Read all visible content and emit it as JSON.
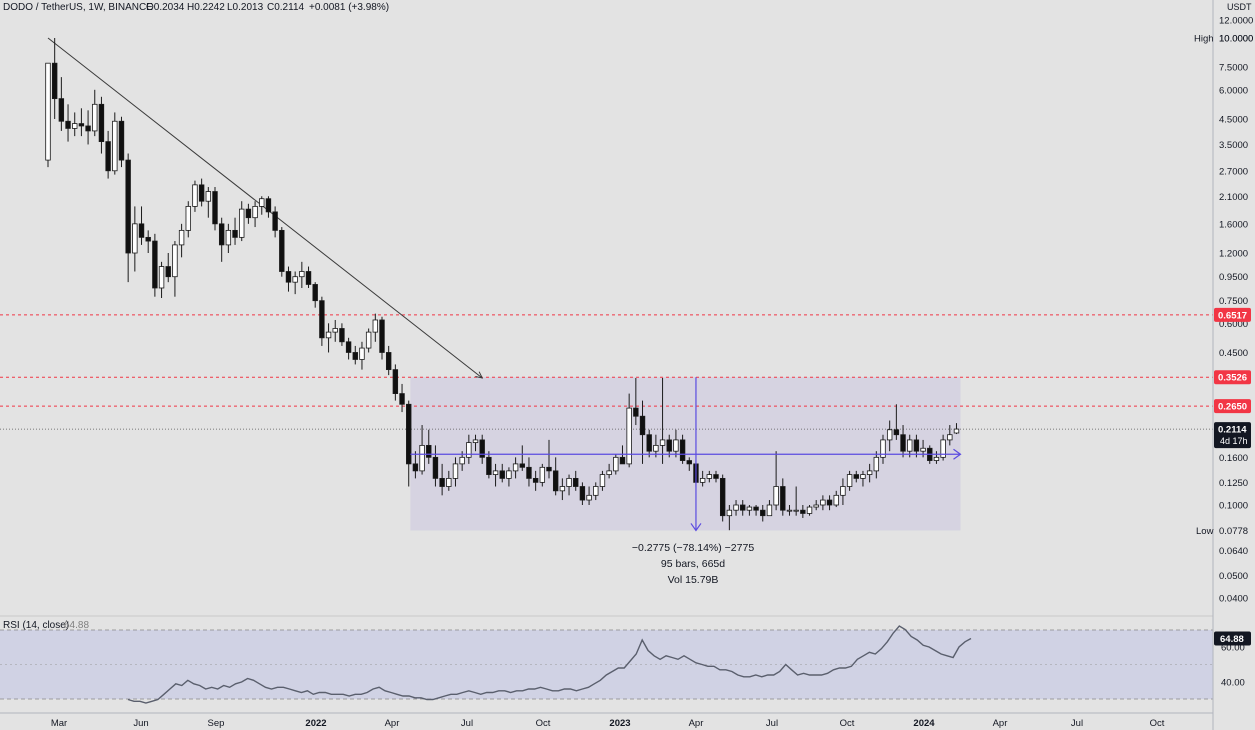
{
  "header": {
    "symbol": "DODO / TetherUS, 1W, BINANCE",
    "open": "O0.2034",
    "high": "H0.2242",
    "low": "L0.2013",
    "close": "C0.2114",
    "change": "+0.0081 (+3.98%)"
  },
  "price_axis": {
    "currency": "USDT",
    "ticks": [
      "12.0000",
      "10.0000",
      "7.5000",
      "6.0000",
      "4.5000",
      "3.5000",
      "2.7000",
      "2.1000",
      "1.6000",
      "1.2000",
      "0.9500",
      "0.7500",
      "0.6000",
      "0.4500",
      "0.1600",
      "0.1250",
      "0.1000",
      "0.0640",
      "0.0500",
      "0.0400"
    ],
    "high_label": "High",
    "high_value": "10.0000",
    "low_label": "Low",
    "low_value": "0.0778",
    "red_levels": [
      "0.6517",
      "0.3526",
      "0.2650"
    ],
    "last_price": "0.2114",
    "countdown": "4d 17h"
  },
  "time_axis": {
    "labels": [
      "Mar",
      "Jun",
      "Sep",
      "2022",
      "Apr",
      "Jul",
      "Oct",
      "2023",
      "Apr",
      "Jul",
      "Oct",
      "2024",
      "Apr",
      "Jul",
      "Oct"
    ]
  },
  "measure": {
    "line1": "−0.2775 (−78.14%) −2775",
    "line2": "95 bars, 665d",
    "line3": "Vol 15.79B"
  },
  "rsi": {
    "label": "RSI (14, close)",
    "value": "64.88",
    "ticks": [
      "60.00",
      "40.00"
    ],
    "last_value": "64.88"
  },
  "colors": {
    "background": "#e3e3e3",
    "red_level": "#f23645",
    "measure_blue": "#5b4be0",
    "range_box": "rgba(180,170,220,0.28)",
    "rsi_band": "rgba(140,150,230,0.22)"
  },
  "chart_data": {
    "type": "candlestick",
    "series_step": "1W",
    "price_scale": "log",
    "key_levels": [
      0.6517,
      0.3526,
      0.265,
      0.165
    ],
    "range_box": {
      "top": 0.3526,
      "bottom": 0.0778
    },
    "trendline": {
      "from_price": 10.0,
      "to_price": 0.35
    },
    "ohlc": [
      [
        3.0,
        7.8,
        2.8,
        7.8
      ],
      [
        7.8,
        10.0,
        4.5,
        5.5
      ],
      [
        5.5,
        6.8,
        4.0,
        4.4
      ],
      [
        4.4,
        5.2,
        3.6,
        4.1
      ],
      [
        4.1,
        4.8,
        3.8,
        4.3
      ],
      [
        4.3,
        5.0,
        3.8,
        4.2
      ],
      [
        4.2,
        4.9,
        3.5,
        4.0
      ],
      [
        4.0,
        6.0,
        3.8,
        5.2
      ],
      [
        5.2,
        5.6,
        3.2,
        3.6
      ],
      [
        3.6,
        4.0,
        2.5,
        2.7
      ],
      [
        2.7,
        4.8,
        2.6,
        4.4
      ],
      [
        4.4,
        4.6,
        2.8,
        3.0
      ],
      [
        3.0,
        3.2,
        0.9,
        1.2
      ],
      [
        1.2,
        1.9,
        1.0,
        1.6
      ],
      [
        1.6,
        1.9,
        1.3,
        1.4
      ],
      [
        1.4,
        1.5,
        1.2,
        1.35
      ],
      [
        1.35,
        1.45,
        0.78,
        0.85
      ],
      [
        0.85,
        1.1,
        0.77,
        1.05
      ],
      [
        1.05,
        1.2,
        0.9,
        0.95
      ],
      [
        0.95,
        1.35,
        0.78,
        1.3
      ],
      [
        1.3,
        1.6,
        1.15,
        1.5
      ],
      [
        1.5,
        2.0,
        1.4,
        1.9
      ],
      [
        1.9,
        2.45,
        1.8,
        2.35
      ],
      [
        2.35,
        2.5,
        1.9,
        2.0
      ],
      [
        2.0,
        2.3,
        1.7,
        2.2
      ],
      [
        2.2,
        2.3,
        1.5,
        1.6
      ],
      [
        1.6,
        1.7,
        1.1,
        1.3
      ],
      [
        1.3,
        1.6,
        1.2,
        1.5
      ],
      [
        1.5,
        1.7,
        1.3,
        1.4
      ],
      [
        1.4,
        2.0,
        1.35,
        1.85
      ],
      [
        1.85,
        1.95,
        1.6,
        1.7
      ],
      [
        1.7,
        2.0,
        1.55,
        1.9
      ],
      [
        1.9,
        2.1,
        1.75,
        2.05
      ],
      [
        2.05,
        2.1,
        1.7,
        1.8
      ],
      [
        1.8,
        1.9,
        1.4,
        1.5
      ],
      [
        1.5,
        1.55,
        0.95,
        1.0
      ],
      [
        1.0,
        1.05,
        0.82,
        0.9
      ],
      [
        0.9,
        1.0,
        0.8,
        0.95
      ],
      [
        0.95,
        1.1,
        0.85,
        1.0
      ],
      [
        1.0,
        1.05,
        0.85,
        0.88
      ],
      [
        0.88,
        0.9,
        0.7,
        0.75
      ],
      [
        0.75,
        0.78,
        0.48,
        0.52
      ],
      [
        0.52,
        0.6,
        0.45,
        0.55
      ],
      [
        0.55,
        0.62,
        0.5,
        0.57
      ],
      [
        0.57,
        0.6,
        0.48,
        0.5
      ],
      [
        0.5,
        0.52,
        0.42,
        0.45
      ],
      [
        0.45,
        0.48,
        0.4,
        0.42
      ],
      [
        0.42,
        0.5,
        0.38,
        0.47
      ],
      [
        0.47,
        0.57,
        0.45,
        0.55
      ],
      [
        0.55,
        0.66,
        0.5,
        0.62
      ],
      [
        0.62,
        0.64,
        0.42,
        0.45
      ],
      [
        0.45,
        0.48,
        0.36,
        0.38
      ],
      [
        0.38,
        0.4,
        0.28,
        0.3
      ],
      [
        0.3,
        0.33,
        0.25,
        0.27
      ],
      [
        0.27,
        0.28,
        0.12,
        0.15
      ],
      [
        0.15,
        0.17,
        0.13,
        0.14
      ],
      [
        0.14,
        0.22,
        0.135,
        0.18
      ],
      [
        0.18,
        0.21,
        0.15,
        0.16
      ],
      [
        0.16,
        0.18,
        0.12,
        0.13
      ],
      [
        0.13,
        0.15,
        0.11,
        0.12
      ],
      [
        0.12,
        0.14,
        0.115,
        0.13
      ],
      [
        0.13,
        0.16,
        0.12,
        0.15
      ],
      [
        0.15,
        0.17,
        0.14,
        0.16
      ],
      [
        0.16,
        0.2,
        0.15,
        0.185
      ],
      [
        0.185,
        0.2,
        0.17,
        0.19
      ],
      [
        0.19,
        0.2,
        0.15,
        0.16
      ],
      [
        0.16,
        0.17,
        0.13,
        0.135
      ],
      [
        0.135,
        0.15,
        0.12,
        0.14
      ],
      [
        0.14,
        0.15,
        0.125,
        0.13
      ],
      [
        0.13,
        0.145,
        0.12,
        0.14
      ],
      [
        0.14,
        0.16,
        0.13,
        0.15
      ],
      [
        0.15,
        0.18,
        0.14,
        0.145
      ],
      [
        0.145,
        0.16,
        0.12,
        0.13
      ],
      [
        0.13,
        0.14,
        0.115,
        0.125
      ],
      [
        0.125,
        0.15,
        0.12,
        0.145
      ],
      [
        0.145,
        0.19,
        0.13,
        0.14
      ],
      [
        0.14,
        0.16,
        0.11,
        0.115
      ],
      [
        0.115,
        0.13,
        0.105,
        0.12
      ],
      [
        0.12,
        0.135,
        0.11,
        0.13
      ],
      [
        0.13,
        0.14,
        0.115,
        0.12
      ],
      [
        0.12,
        0.125,
        0.1,
        0.105
      ],
      [
        0.105,
        0.12,
        0.1,
        0.11
      ],
      [
        0.11,
        0.125,
        0.105,
        0.12
      ],
      [
        0.12,
        0.14,
        0.115,
        0.135
      ],
      [
        0.135,
        0.15,
        0.13,
        0.14
      ],
      [
        0.14,
        0.165,
        0.135,
        0.16
      ],
      [
        0.16,
        0.18,
        0.15,
        0.15
      ],
      [
        0.15,
        0.3,
        0.145,
        0.26
      ],
      [
        0.26,
        0.35,
        0.22,
        0.24
      ],
      [
        0.24,
        0.28,
        0.15,
        0.2
      ],
      [
        0.2,
        0.21,
        0.16,
        0.17
      ],
      [
        0.17,
        0.2,
        0.16,
        0.18
      ],
      [
        0.18,
        0.35,
        0.15,
        0.19
      ],
      [
        0.19,
        0.2,
        0.16,
        0.17
      ],
      [
        0.17,
        0.21,
        0.16,
        0.19
      ],
      [
        0.19,
        0.2,
        0.15,
        0.155
      ],
      [
        0.155,
        0.16,
        0.14,
        0.15
      ],
      [
        0.15,
        0.155,
        0.12,
        0.125
      ],
      [
        0.125,
        0.14,
        0.12,
        0.13
      ],
      [
        0.13,
        0.14,
        0.125,
        0.135
      ],
      [
        0.135,
        0.14,
        0.125,
        0.13
      ],
      [
        0.13,
        0.135,
        0.085,
        0.09
      ],
      [
        0.09,
        0.1,
        0.078,
        0.095
      ],
      [
        0.095,
        0.105,
        0.09,
        0.1
      ],
      [
        0.1,
        0.105,
        0.09,
        0.095
      ],
      [
        0.095,
        0.1,
        0.09,
        0.098
      ],
      [
        0.098,
        0.1,
        0.09,
        0.095
      ],
      [
        0.095,
        0.1,
        0.085,
        0.09
      ],
      [
        0.09,
        0.105,
        0.09,
        0.1
      ],
      [
        0.1,
        0.17,
        0.095,
        0.12
      ],
      [
        0.12,
        0.13,
        0.09,
        0.095
      ],
      [
        0.095,
        0.1,
        0.09,
        0.095
      ],
      [
        0.095,
        0.12,
        0.09,
        0.095
      ],
      [
        0.095,
        0.1,
        0.088,
        0.092
      ],
      [
        0.092,
        0.1,
        0.09,
        0.098
      ],
      [
        0.098,
        0.105,
        0.095,
        0.1
      ],
      [
        0.1,
        0.11,
        0.095,
        0.105
      ],
      [
        0.105,
        0.11,
        0.095,
        0.1
      ],
      [
        0.1,
        0.115,
        0.098,
        0.11
      ],
      [
        0.11,
        0.13,
        0.1,
        0.12
      ],
      [
        0.12,
        0.14,
        0.115,
        0.135
      ],
      [
        0.135,
        0.14,
        0.125,
        0.13
      ],
      [
        0.13,
        0.14,
        0.12,
        0.135
      ],
      [
        0.135,
        0.15,
        0.125,
        0.14
      ],
      [
        0.14,
        0.17,
        0.13,
        0.16
      ],
      [
        0.16,
        0.2,
        0.15,
        0.19
      ],
      [
        0.19,
        0.23,
        0.17,
        0.21
      ],
      [
        0.21,
        0.27,
        0.19,
        0.2
      ],
      [
        0.2,
        0.22,
        0.16,
        0.17
      ],
      [
        0.17,
        0.2,
        0.16,
        0.19
      ],
      [
        0.19,
        0.2,
        0.16,
        0.17
      ],
      [
        0.17,
        0.19,
        0.16,
        0.175
      ],
      [
        0.175,
        0.18,
        0.15,
        0.155
      ],
      [
        0.155,
        0.17,
        0.15,
        0.16
      ],
      [
        0.16,
        0.2,
        0.155,
        0.19
      ],
      [
        0.19,
        0.22,
        0.18,
        0.2
      ],
      [
        0.2034,
        0.2242,
        0.2013,
        0.2114
      ]
    ],
    "rsi_values": [
      30,
      29,
      29,
      28,
      29,
      30,
      33,
      36,
      39,
      38,
      41,
      39,
      38,
      36,
      37,
      36,
      38,
      37,
      39,
      40,
      42,
      41,
      39,
      37,
      36,
      37,
      37,
      36,
      35,
      34,
      35,
      33,
      34,
      34,
      33,
      33,
      33,
      32,
      33,
      33,
      34,
      36,
      37,
      35,
      34,
      33,
      32,
      32,
      31,
      31,
      30,
      30,
      31,
      32,
      33,
      33,
      34,
      35,
      34,
      33,
      34,
      34,
      35,
      35,
      34,
      35,
      35,
      36,
      36,
      37,
      36,
      35,
      35,
      36,
      36,
      35,
      36,
      37,
      39,
      41,
      44,
      46,
      48,
      48,
      52,
      56,
      64,
      58,
      55,
      53,
      55,
      54,
      53,
      55,
      53,
      51,
      50,
      49,
      49,
      47,
      47,
      46,
      44,
      43,
      43,
      44,
      43,
      44,
      44,
      46,
      50,
      47,
      44,
      45,
      44,
      44,
      44,
      45,
      47,
      48,
      48,
      49,
      53,
      55,
      57,
      56,
      59,
      63,
      68,
      72,
      70,
      66,
      64,
      61,
      60,
      58,
      56,
      55,
      54,
      60,
      63,
      64.88
    ]
  }
}
